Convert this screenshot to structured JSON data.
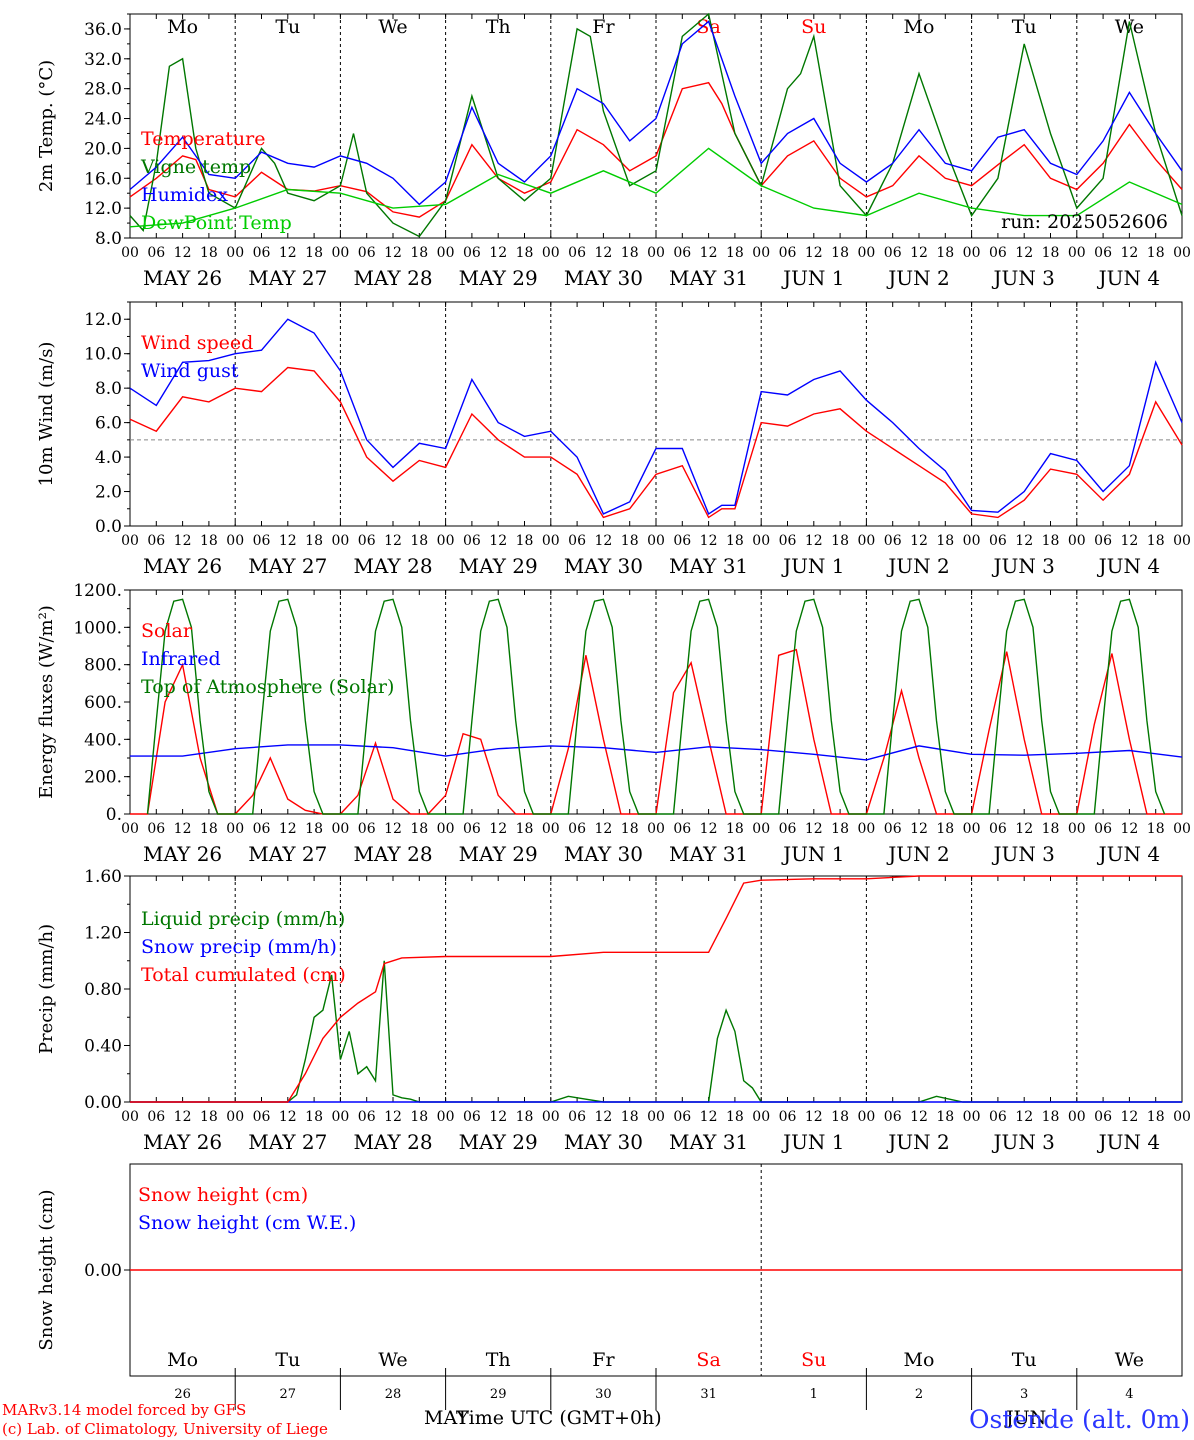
{
  "footer": {
    "model_line": "MARv3.14 model forced by GFS",
    "lab_line": "(c) Lab. of Climatology, University of Liege",
    "xlabel": "Time UTC (GMT+0h)",
    "month_may": "MAY",
    "month_jun": "JUN",
    "station": "Ostende (alt. 0m)"
  },
  "run_label": "run: 2025052606",
  "days": [
    "Mo",
    "Tu",
    "We",
    "Th",
    "Fr",
    "Sa",
    "Su",
    "Mo",
    "Tu",
    "We"
  ],
  "date_labels": [
    "MAY 26",
    "MAY 27",
    "MAY 28",
    "MAY 29",
    "MAY 30",
    "MAY 31",
    "JUN  1",
    "JUN  2",
    "JUN  3",
    "JUN  4"
  ],
  "day_numbers": [
    "26",
    "27",
    "28",
    "29",
    "30",
    "31",
    "1",
    "2",
    "3",
    "4"
  ],
  "hour_ticks": [
    "00",
    "06",
    "12",
    "18"
  ],
  "hour_end": "00",
  "colors": {
    "weekend": "#ff0000",
    "red": "#ff0000",
    "blue": "#0000ff",
    "green": "#007700",
    "light_green": "#00cc00",
    "grid": "#666666"
  },
  "chart_data": [
    {
      "type": "line",
      "ylabel": "2m Temp. (°C)",
      "ylim": [
        8,
        38
      ],
      "yticks": [
        "8.0",
        "12.0",
        "16.0",
        "20.0",
        "24.0",
        "28.0",
        "32.0",
        "36.0"
      ],
      "ytick_values": [
        8,
        12,
        16,
        20,
        24,
        28,
        32,
        36
      ],
      "x_unit": "hours since first 00 UTC",
      "series": [
        {
          "name": "Temperature",
          "color": "#ff0000",
          "x": [
            0,
            6,
            12,
            15,
            18,
            24,
            30,
            36,
            42,
            48,
            54,
            60,
            66,
            72,
            78,
            84,
            90,
            96,
            102,
            108,
            114,
            120,
            126,
            132,
            135,
            138,
            144,
            150,
            156,
            162,
            168,
            174,
            180,
            186,
            192,
            198,
            204,
            210,
            216,
            222,
            228,
            234,
            240
          ],
          "y": [
            13.5,
            16,
            19,
            18.5,
            14.5,
            13.5,
            16.8,
            14.5,
            14.3,
            15,
            14.2,
            11.5,
            10.8,
            13,
            20.5,
            16,
            14,
            15.5,
            22.5,
            20.5,
            17,
            19,
            28,
            28.8,
            26,
            22,
            15,
            19,
            21,
            16,
            13.5,
            15,
            19,
            16,
            15,
            17.8,
            20.5,
            16,
            14.5,
            18,
            23.2,
            18.5,
            14.5
          ]
        },
        {
          "name": "Vigne temp",
          "color": "#007700",
          "x": [
            0,
            3,
            6,
            9,
            12,
            15,
            18,
            24,
            30,
            33,
            36,
            42,
            48,
            51,
            54,
            60,
            66,
            72,
            78,
            84,
            90,
            96,
            102,
            105,
            108,
            114,
            120,
            126,
            132,
            138,
            144,
            150,
            153,
            156,
            162,
            168,
            174,
            180,
            186,
            192,
            198,
            204,
            210,
            216,
            222,
            228,
            234,
            240
          ],
          "y": [
            11,
            9,
            18,
            31,
            32,
            20,
            14,
            12,
            20,
            18,
            14,
            13,
            15,
            22,
            14,
            10,
            8.2,
            13,
            27,
            16,
            13,
            16,
            36,
            35,
            25,
            15,
            17,
            35,
            38,
            22,
            15,
            28,
            30,
            35,
            15,
            11,
            18,
            30,
            20,
            11,
            16,
            34,
            22,
            12,
            16,
            37,
            22,
            11
          ]
        },
        {
          "name": "Humidex",
          "color": "#0000ff",
          "x": [
            0,
            6,
            12,
            18,
            24,
            30,
            36,
            42,
            48,
            54,
            60,
            66,
            72,
            78,
            84,
            90,
            96,
            102,
            108,
            114,
            120,
            126,
            132,
            138,
            144,
            150,
            156,
            162,
            168,
            174,
            180,
            186,
            192,
            198,
            204,
            210,
            216,
            222,
            228,
            234,
            240
          ],
          "y": [
            14.5,
            17.5,
            21.5,
            16.5,
            16,
            19.5,
            18,
            17.5,
            19,
            18,
            16,
            12.5,
            15.5,
            25.5,
            18,
            15.5,
            19,
            28,
            26,
            21,
            24,
            34,
            37,
            27,
            18,
            22,
            24,
            18,
            15.5,
            18,
            22.5,
            18,
            17,
            21.5,
            22.5,
            18,
            16.5,
            21,
            27.5,
            22,
            17
          ]
        },
        {
          "name": "DewPoint Temp",
          "color": "#00cc00",
          "x": [
            0,
            12,
            24,
            36,
            48,
            60,
            72,
            84,
            96,
            108,
            120,
            132,
            144,
            156,
            168,
            180,
            192,
            204,
            216,
            228,
            240
          ],
          "y": [
            9.5,
            10,
            12,
            14.5,
            14,
            12,
            12.5,
            16.5,
            14,
            17,
            14,
            20,
            15,
            12,
            11,
            14,
            12,
            11,
            11,
            15.5,
            12.5
          ]
        }
      ]
    },
    {
      "type": "line",
      "ylabel": "10m Wind (m/s)",
      "ylim": [
        0,
        13
      ],
      "yticks": [
        "0.0",
        "2.0",
        "4.0",
        "6.0",
        "8.0",
        "10.0",
        "12.0"
      ],
      "ytick_values": [
        0,
        2,
        4,
        6,
        8,
        10,
        12
      ],
      "ref_line": 5.0,
      "series": [
        {
          "name": "Wind speed",
          "color": "#ff0000",
          "x": [
            0,
            6,
            12,
            18,
            24,
            30,
            36,
            42,
            48,
            54,
            60,
            66,
            72,
            78,
            84,
            90,
            96,
            102,
            108,
            114,
            120,
            126,
            132,
            135,
            138,
            144,
            150,
            156,
            162,
            168,
            174,
            180,
            186,
            192,
            198,
            204,
            210,
            216,
            222,
            228,
            234,
            240
          ],
          "y": [
            6.2,
            5.5,
            7.5,
            7.2,
            8,
            7.8,
            9.2,
            9,
            7.2,
            4,
            2.6,
            3.8,
            3.4,
            6.5,
            5,
            4,
            4,
            3,
            0.5,
            1,
            3,
            3.5,
            0.5,
            1,
            1,
            6,
            5.8,
            6.5,
            6.8,
            5.5,
            4.5,
            3.5,
            2.5,
            0.7,
            0.5,
            1.5,
            3.3,
            3,
            1.5,
            3,
            7.2,
            4.7
          ]
        },
        {
          "name": "Wind gust",
          "color": "#0000ff",
          "x": [
            0,
            6,
            12,
            18,
            24,
            30,
            36,
            42,
            48,
            54,
            60,
            66,
            72,
            78,
            84,
            90,
            96,
            102,
            108,
            114,
            120,
            126,
            132,
            135,
            138,
            144,
            150,
            156,
            162,
            168,
            174,
            180,
            186,
            192,
            198,
            204,
            210,
            216,
            222,
            228,
            234,
            240
          ],
          "y": [
            8,
            7,
            9.5,
            9.6,
            10,
            10.2,
            12,
            11.2,
            9,
            5,
            3.4,
            4.8,
            4.5,
            8.5,
            6,
            5.2,
            5.5,
            4,
            0.7,
            1.4,
            4.5,
            4.5,
            0.7,
            1.2,
            1.2,
            7.8,
            7.6,
            8.5,
            9,
            7.3,
            6,
            4.5,
            3.2,
            0.9,
            0.8,
            2,
            4.2,
            3.8,
            2,
            3.5,
            9.5,
            6
          ]
        }
      ]
    },
    {
      "type": "line",
      "ylabel": "Energy fluxes (W/m²)",
      "ylim": [
        0,
        1200
      ],
      "yticks": [
        "0.",
        "200.",
        "400.",
        "600.",
        "800.",
        "1000.",
        "1200."
      ],
      "ytick_values": [
        0,
        200,
        400,
        600,
        800,
        1000,
        1200
      ],
      "series": [
        {
          "name": "Solar",
          "color": "#ff0000",
          "x": [
            0,
            4,
            8,
            12,
            16,
            20,
            24,
            28,
            32,
            36,
            40,
            44,
            48,
            52,
            56,
            60,
            64,
            68,
            72,
            76,
            80,
            84,
            88,
            92,
            96,
            100,
            104,
            108,
            112,
            116,
            120,
            124,
            128,
            132,
            136,
            140,
            144,
            148,
            152,
            156,
            160,
            164,
            168,
            172,
            176,
            180,
            184,
            188,
            192,
            196,
            200,
            204,
            208,
            212,
            216,
            220,
            224,
            228,
            232,
            236,
            240
          ],
          "y": [
            0,
            0,
            600,
            800,
            300,
            0,
            0,
            100,
            300,
            80,
            20,
            0,
            0,
            100,
            380,
            80,
            0,
            0,
            100,
            430,
            400,
            100,
            0,
            0,
            0,
            350,
            850,
            400,
            0,
            0,
            0,
            650,
            810,
            400,
            0,
            0,
            0,
            850,
            880,
            400,
            0,
            0,
            0,
            300,
            660,
            300,
            0,
            0,
            0,
            450,
            870,
            400,
            0,
            0,
            0,
            480,
            860,
            400,
            0,
            0,
            0
          ]
        },
        {
          "name": "Infrared",
          "color": "#0000ff",
          "x": [
            0,
            12,
            24,
            36,
            48,
            60,
            72,
            84,
            96,
            108,
            120,
            132,
            144,
            156,
            168,
            180,
            192,
            204,
            216,
            228,
            240
          ],
          "y": [
            310,
            310,
            350,
            370,
            370,
            355,
            310,
            350,
            365,
            355,
            330,
            360,
            345,
            320,
            290,
            365,
            320,
            315,
            325,
            340,
            305
          ]
        },
        {
          "name": "Top of Atmosphere (Solar)",
          "color": "#007700",
          "x": [
            4,
            6,
            8,
            10,
            12,
            14,
            16,
            18,
            20
          ],
          "y": [
            0,
            500,
            980,
            1140,
            1150,
            1000,
            500,
            120,
            0
          ],
          "periodic": true
        }
      ]
    },
    {
      "type": "line",
      "ylabel": "Precip (mm/h)",
      "ylim": [
        0,
        1.6
      ],
      "yticks": [
        "0.00",
        "0.40",
        "0.80",
        "1.20",
        "1.60"
      ],
      "ytick_values": [
        0,
        0.4,
        0.8,
        1.2,
        1.6
      ],
      "series": [
        {
          "name": "Liquid precip (mm/h)",
          "color": "#007700",
          "x": [
            0,
            24,
            36,
            38,
            40,
            42,
            44,
            46,
            48,
            50,
            52,
            54,
            56,
            58,
            60,
            62,
            64,
            66,
            72,
            96,
            100,
            104,
            108,
            120,
            132,
            134,
            136,
            138,
            140,
            142,
            144,
            156,
            168,
            180,
            184,
            190,
            196,
            216,
            240
          ],
          "y": [
            0,
            0,
            0,
            0.05,
            0.3,
            0.6,
            0.65,
            0.9,
            0.3,
            0.5,
            0.2,
            0.25,
            0.15,
            1,
            0.05,
            0.03,
            0.02,
            0,
            0,
            0,
            0.04,
            0.02,
            0,
            0,
            0,
            0.45,
            0.65,
            0.5,
            0.15,
            0.1,
            0,
            0,
            0,
            0,
            0.04,
            0,
            0,
            0,
            0
          ]
        },
        {
          "name": "Snow precip (mm/h)",
          "color": "#0000ff",
          "x": [
            0,
            240
          ],
          "y": [
            0,
            0
          ]
        },
        {
          "name": "Total cumulated (cm)",
          "color": "#ff0000",
          "x": [
            0,
            36,
            40,
            44,
            48,
            52,
            56,
            58,
            62,
            72,
            96,
            108,
            120,
            132,
            136,
            140,
            144,
            156,
            168,
            180,
            192,
            216,
            240
          ],
          "y": [
            0,
            0,
            0.2,
            0.45,
            0.6,
            0.7,
            0.78,
            0.98,
            1.02,
            1.03,
            1.03,
            1.06,
            1.06,
            1.06,
            1.3,
            1.55,
            1.57,
            1.58,
            1.58,
            1.6,
            1.6,
            1.6,
            1.6
          ]
        }
      ]
    },
    {
      "type": "line",
      "ylabel": "Snow height (cm)",
      "yticks": [
        "0.00"
      ],
      "ytick_values": [
        0
      ],
      "series": [
        {
          "name": "Snow height (cm)",
          "color": "#ff0000",
          "x": [
            0,
            240
          ],
          "y": [
            0,
            0
          ]
        },
        {
          "name": "Snow height (cm W.E.)",
          "color": "#0000ff",
          "x": [
            0,
            240
          ],
          "y": [
            0,
            0
          ]
        }
      ]
    }
  ]
}
